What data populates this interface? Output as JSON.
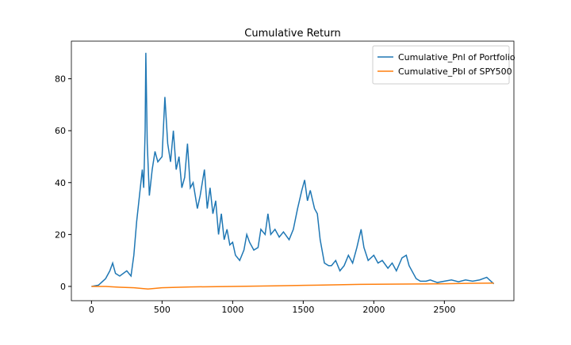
{
  "chart_data": {
    "type": "line",
    "title": "Cumulative Return",
    "xlim": [
      -142.5,
      2992.5
    ],
    "xticks": [
      0,
      500,
      1000,
      1500,
      2000,
      2500
    ],
    "ylim": [
      -5.5,
      94.5
    ],
    "yticks": [
      0,
      20,
      40,
      60,
      80
    ],
    "legend": "upper right",
    "grid": false,
    "series": [
      {
        "name": "Cumulative_Pnl of Portfolio",
        "color": "#1f77b4",
        "x": [
          0,
          50,
          100,
          130,
          150,
          170,
          200,
          250,
          280,
          300,
          320,
          340,
          360,
          370,
          380,
          385,
          395,
          410,
          430,
          450,
          470,
          500,
          520,
          540,
          560,
          580,
          600,
          620,
          640,
          660,
          680,
          700,
          720,
          750,
          770,
          800,
          820,
          840,
          860,
          880,
          900,
          920,
          940,
          960,
          980,
          1000,
          1020,
          1050,
          1080,
          1100,
          1120,
          1150,
          1180,
          1200,
          1230,
          1250,
          1270,
          1300,
          1330,
          1360,
          1400,
          1430,
          1460,
          1490,
          1510,
          1530,
          1550,
          1580,
          1600,
          1620,
          1650,
          1680,
          1700,
          1730,
          1760,
          1790,
          1820,
          1850,
          1880,
          1910,
          1930,
          1960,
          2000,
          2030,
          2060,
          2100,
          2130,
          2160,
          2200,
          2230,
          2250,
          2280,
          2300,
          2330,
          2370,
          2400,
          2450,
          2500,
          2550,
          2600,
          2650,
          2700,
          2750,
          2800,
          2830,
          2850
        ],
        "values": [
          0,
          0.5,
          3,
          6,
          9,
          5,
          4,
          6,
          4,
          12,
          25,
          35,
          45,
          38,
          60,
          90,
          55,
          35,
          45,
          52,
          48,
          50,
          73,
          55,
          48,
          60,
          45,
          50,
          38,
          42,
          55,
          38,
          40,
          30,
          35,
          45,
          30,
          38,
          28,
          33,
          20,
          28,
          18,
          22,
          16,
          17,
          12,
          10,
          14,
          20,
          17,
          14,
          15,
          22,
          20,
          28,
          20,
          22,
          19,
          21,
          18,
          22,
          30,
          37,
          41,
          33,
          37,
          30,
          28,
          18,
          9,
          8,
          8,
          10,
          6,
          8,
          12,
          9,
          15,
          22,
          15,
          10,
          12,
          9,
          10,
          7,
          9,
          6,
          11,
          12,
          8,
          5,
          3,
          2,
          2,
          2.5,
          1.5,
          2,
          2.5,
          1.8,
          2.5,
          2,
          2.5,
          3.5,
          2,
          1
        ]
      },
      {
        "name": "Cumulative_Pbl of SPY500",
        "color": "#ff7f0e",
        "x": [
          0,
          100,
          200,
          300,
          400,
          500,
          700,
          1000,
          1300,
          1600,
          1900,
          2200,
          2500,
          2700,
          2850
        ],
        "values": [
          0,
          0,
          -0.3,
          -0.5,
          -1,
          -0.5,
          -0.2,
          0,
          0.2,
          0.5,
          0.8,
          0.9,
          1,
          1.2,
          1.3
        ]
      }
    ]
  }
}
